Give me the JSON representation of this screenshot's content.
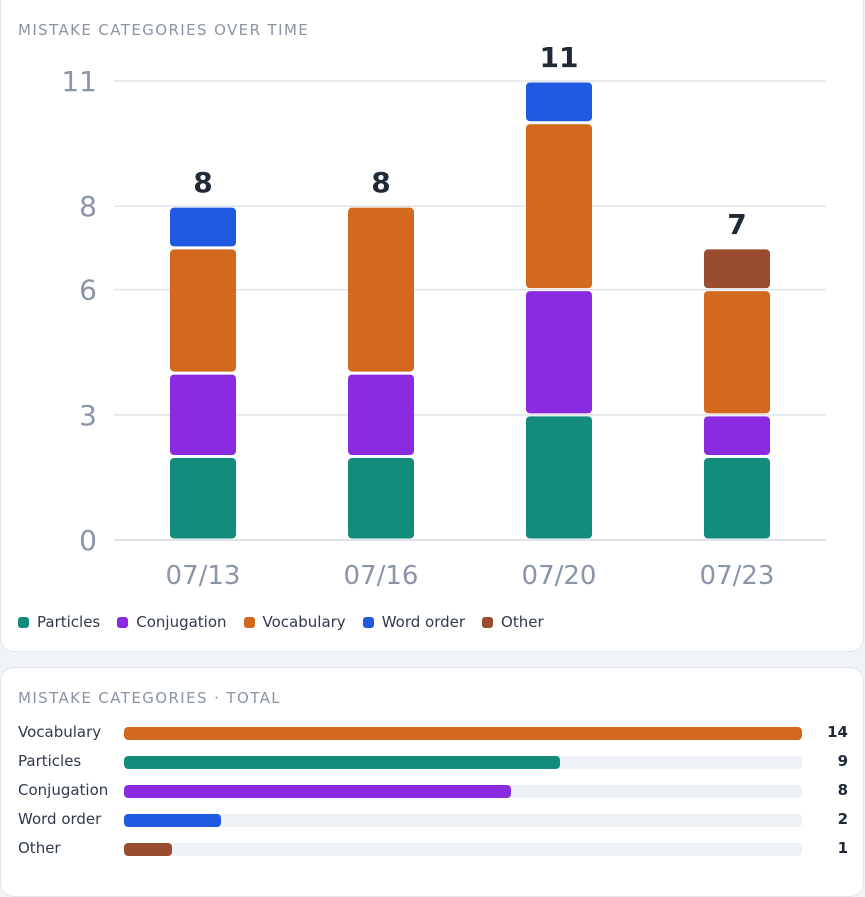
{
  "colors": {
    "Particles": "#148c7c",
    "Conjugation": "#8a2be2",
    "Vocabulary": "#d2691e",
    "Word order": "#1f5ae0",
    "Other": "#9a4c2e"
  },
  "time_card": {
    "title": "MISTAKE CATEGORIES OVER TIME"
  },
  "total_card": {
    "title": "MISTAKE CATEGORIES · TOTAL"
  },
  "chart_data": [
    {
      "type": "bar",
      "stacked": true,
      "categories": [
        "07/13",
        "07/16",
        "07/20",
        "07/23"
      ],
      "series": [
        {
          "name": "Particles",
          "values": [
            2,
            2,
            3,
            2
          ]
        },
        {
          "name": "Conjugation",
          "values": [
            2,
            2,
            3,
            1
          ]
        },
        {
          "name": "Vocabulary",
          "values": [
            3,
            4,
            4,
            3
          ]
        },
        {
          "name": "Word order",
          "values": [
            1,
            0,
            1,
            0
          ]
        },
        {
          "name": "Other",
          "values": [
            0,
            0,
            0,
            1
          ]
        }
      ],
      "totals": [
        "8",
        "8",
        "11",
        "7"
      ],
      "yticks": [
        "0",
        "3",
        "6",
        "8",
        "11"
      ],
      "ylim": [
        0,
        11
      ],
      "grid": true,
      "legend": "bottom-left"
    },
    {
      "type": "bar",
      "orientation": "horizontal",
      "categories": [
        "Vocabulary",
        "Particles",
        "Conjugation",
        "Word order",
        "Other"
      ],
      "values": [
        14,
        9,
        8,
        2,
        1
      ],
      "value_labels": [
        "14",
        "9",
        "8",
        "2",
        "1"
      ],
      "xlim": [
        0,
        14
      ]
    }
  ]
}
